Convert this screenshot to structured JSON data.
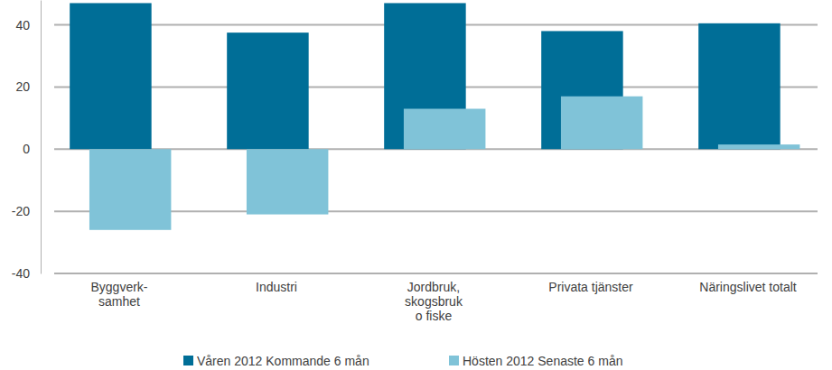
{
  "chart_data": {
    "type": "bar",
    "categories": [
      "Byggverk-\nsamhet",
      "Industri",
      "Jordbruk,\nskogsbruk\no fiske",
      "Privata tjänster",
      "Näringslivet totalt"
    ],
    "series": [
      {
        "name": "Våren 2012 Kommande 6 mån",
        "color": "#006e97",
        "values": [
          47,
          37.5,
          47,
          38,
          40.5
        ]
      },
      {
        "name": "Hösten 2012 Senaste 6 mån",
        "color": "#80c3d8",
        "values": [
          -26,
          -21,
          13,
          17,
          1.5
        ]
      }
    ],
    "ylim": [
      -40,
      48
    ],
    "yticks": [
      -40,
      -20,
      0,
      20,
      40
    ],
    "grid": true,
    "legend": "bottom"
  }
}
